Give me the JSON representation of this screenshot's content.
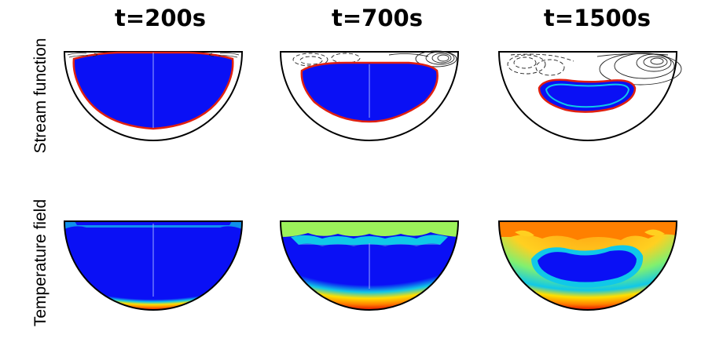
{
  "columns": [
    {
      "title": "t=200s"
    },
    {
      "title": "t=700s"
    },
    {
      "title": "t=1500s"
    }
  ],
  "rows": [
    {
      "label": "Stream function"
    },
    {
      "label": "Temperature field"
    }
  ],
  "colors": {
    "cold_region": "#0a10f5",
    "interface_line": "#e02010",
    "outline": "#000000",
    "warm_green": "#9cf25a",
    "hot_orange": "#ff8000",
    "hot_yellow": "#ffb000",
    "cyan": "#10c8e8"
  }
}
